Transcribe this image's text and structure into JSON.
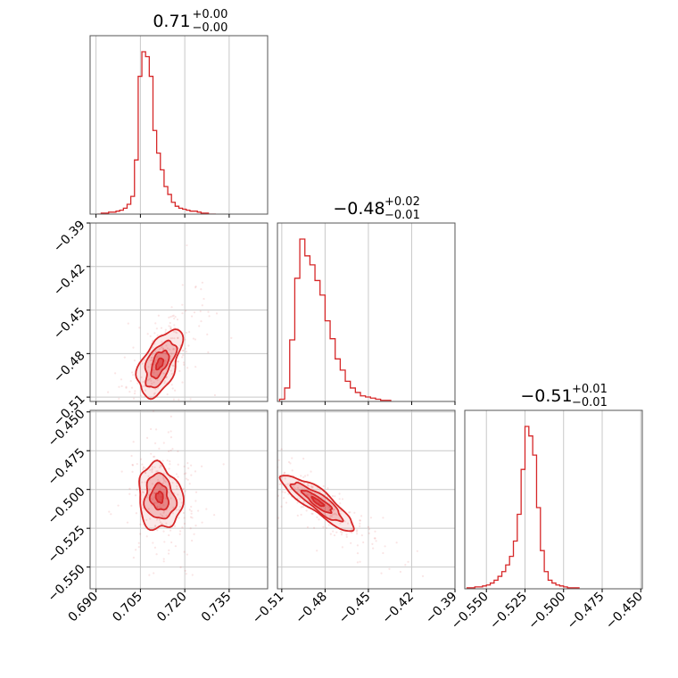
{
  "chart_data": {
    "type": "corner",
    "color": "#d62728",
    "titles": [
      {
        "value": "0.71",
        "plus": "+0.00",
        "minus": "−0.00"
      },
      {
        "value": "−0.48",
        "plus": "+0.02",
        "minus": "−0.01"
      },
      {
        "value": "−0.51",
        "plus": "+0.01",
        "minus": "−0.01"
      }
    ],
    "parameters": [
      {
        "range": [
          0.688,
          0.748
        ],
        "ticks": [
          0.69,
          0.705,
          0.72,
          0.735
        ],
        "tick_labels": [
          "0.690",
          "0.705",
          "0.720",
          "0.735"
        ]
      },
      {
        "range": [
          -0.513,
          -0.39
        ],
        "ticks": [
          -0.51,
          -0.48,
          -0.45,
          -0.42,
          -0.39
        ],
        "tick_labels": [
          "−0.51",
          "−0.48",
          "−0.45",
          "−0.42",
          "−0.39"
        ]
      },
      {
        "range": [
          -0.564,
          -0.449
        ],
        "ticks": [
          -0.55,
          -0.525,
          -0.5,
          -0.475,
          -0.45
        ],
        "tick_labels": [
          "−0.550",
          "−0.525",
          "−0.500",
          "−0.475",
          "−0.450"
        ]
      }
    ],
    "histograms": [
      {
        "param": 0,
        "bin_edges_start": 0.6905,
        "bin_width": 0.00125,
        "counts": [
          0,
          1,
          1,
          2,
          2,
          3,
          4,
          6,
          10,
          18,
          55,
          140,
          165,
          160,
          140,
          85,
          62,
          45,
          28,
          20,
          12,
          8,
          6,
          5,
          4,
          3,
          3,
          2,
          1,
          1,
          0,
          0
        ]
      },
      {
        "param": 1,
        "bin_edges_start": -0.5115,
        "bin_width": 0.0035,
        "counts": [
          2,
          12,
          55,
          110,
          145,
          130,
          122,
          108,
          95,
          72,
          56,
          38,
          28,
          18,
          12,
          8,
          5,
          4,
          3,
          2,
          1,
          1
        ]
      },
      {
        "param": 2,
        "bin_edges_start": -0.5625,
        "bin_width": 0.0025,
        "counts": [
          1,
          1,
          2,
          2,
          3,
          4,
          6,
          9,
          13,
          18,
          25,
          34,
          50,
          78,
          125,
          170,
          160,
          140,
          85,
          40,
          18,
          9,
          6,
          4,
          3,
          2,
          1,
          1,
          1
        ]
      }
    ],
    "contour_panels": [
      {
        "x_param": 0,
        "y_param": 1,
        "center": [
          0.7115,
          -0.487
        ],
        "sigma": [
          0.0035,
          0.011
        ],
        "rho": 0.55
      },
      {
        "x_param": 0,
        "y_param": 2,
        "center": [
          0.7115,
          -0.505
        ],
        "sigma": [
          0.0035,
          0.01
        ],
        "rho": -0.1
      },
      {
        "x_param": 1,
        "y_param": 2,
        "center": [
          -0.485,
          -0.508
        ],
        "sigma": [
          0.012,
          0.0085
        ],
        "rho": -0.88
      }
    ]
  }
}
